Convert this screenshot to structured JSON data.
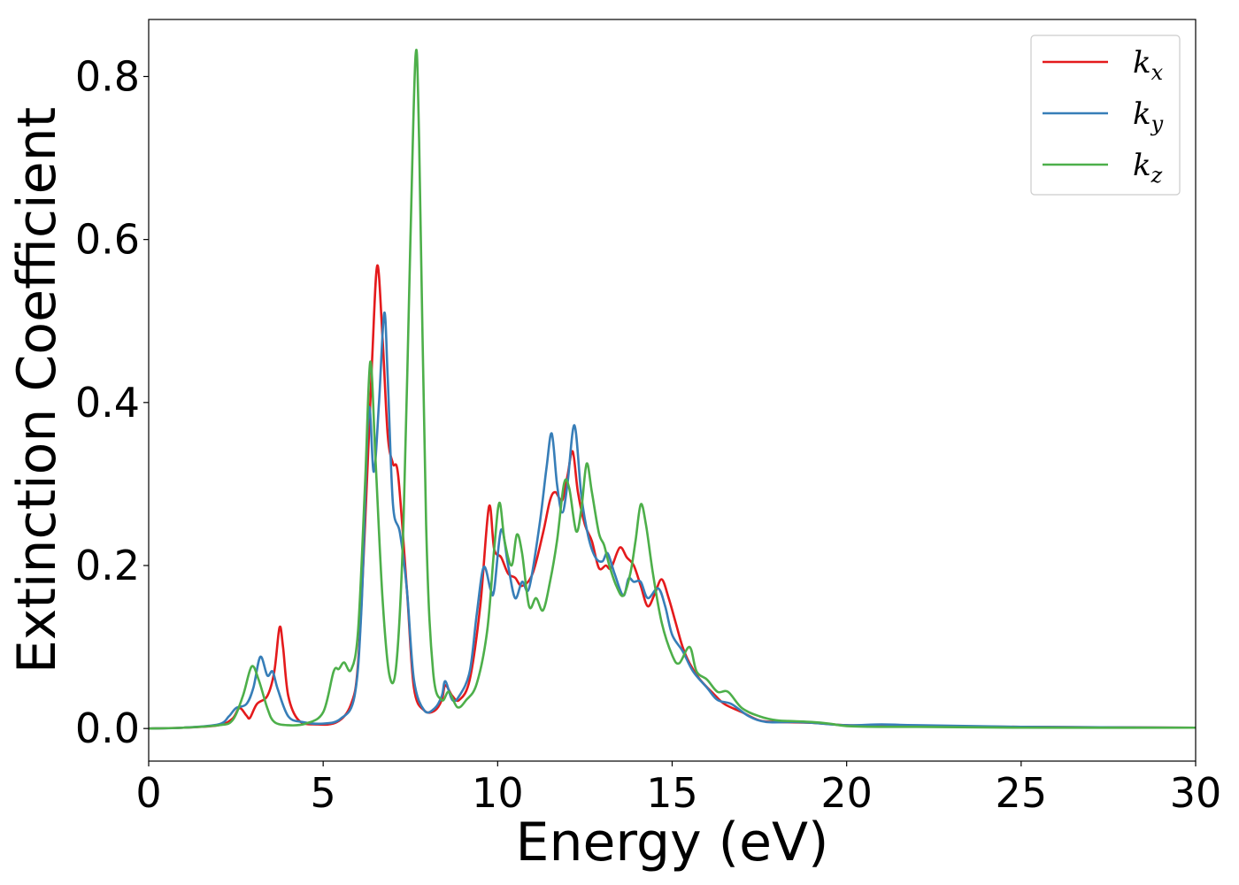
{
  "chart_data": {
    "type": "line",
    "xlabel": "Energy (eV)",
    "ylabel": "Extinction Coefficient",
    "xlim": [
      0,
      30
    ],
    "ylim": [
      -0.04,
      0.87
    ],
    "x_ticks": [
      0,
      5,
      10,
      15,
      20,
      25,
      30
    ],
    "x_tick_labels": [
      "0",
      "5",
      "10",
      "15",
      "20",
      "25",
      "30"
    ],
    "y_ticks": [
      0.0,
      0.2,
      0.4,
      0.6,
      0.8
    ],
    "y_tick_labels": [
      "0.0",
      "0.2",
      "0.4",
      "0.6",
      "0.8"
    ],
    "grid": false,
    "legend_position": "top-right",
    "series": [
      {
        "name": "k_x",
        "legend_base": "k",
        "legend_sub": "x",
        "color": "#e41a1c",
        "points": [
          [
            0,
            0
          ],
          [
            1,
            0.001
          ],
          [
            2,
            0.004
          ],
          [
            2.4,
            0.012
          ],
          [
            2.6,
            0.025
          ],
          [
            2.8,
            0.016
          ],
          [
            2.9,
            0.013
          ],
          [
            3.1,
            0.03
          ],
          [
            3.4,
            0.04
          ],
          [
            3.6,
            0.07
          ],
          [
            3.75,
            0.124
          ],
          [
            3.85,
            0.1
          ],
          [
            4.0,
            0.04
          ],
          [
            4.3,
            0.01
          ],
          [
            4.8,
            0.005
          ],
          [
            5.4,
            0.008
          ],
          [
            5.8,
            0.03
          ],
          [
            6.0,
            0.08
          ],
          [
            6.2,
            0.25
          ],
          [
            6.4,
            0.45
          ],
          [
            6.55,
            0.568
          ],
          [
            6.7,
            0.48
          ],
          [
            6.85,
            0.36
          ],
          [
            7.0,
            0.325
          ],
          [
            7.15,
            0.31
          ],
          [
            7.4,
            0.17
          ],
          [
            7.6,
            0.05
          ],
          [
            7.9,
            0.022
          ],
          [
            8.2,
            0.022
          ],
          [
            8.4,
            0.035
          ],
          [
            8.5,
            0.053
          ],
          [
            8.7,
            0.04
          ],
          [
            8.9,
            0.035
          ],
          [
            9.2,
            0.06
          ],
          [
            9.5,
            0.15
          ],
          [
            9.75,
            0.272
          ],
          [
            9.9,
            0.22
          ],
          [
            10.1,
            0.21
          ],
          [
            10.3,
            0.19
          ],
          [
            10.5,
            0.185
          ],
          [
            10.7,
            0.175
          ],
          [
            11.0,
            0.19
          ],
          [
            11.3,
            0.24
          ],
          [
            11.5,
            0.28
          ],
          [
            11.65,
            0.29
          ],
          [
            11.85,
            0.28
          ],
          [
            12.0,
            0.31
          ],
          [
            12.15,
            0.34
          ],
          [
            12.3,
            0.29
          ],
          [
            12.5,
            0.25
          ],
          [
            12.7,
            0.23
          ],
          [
            12.9,
            0.197
          ],
          [
            13.1,
            0.2
          ],
          [
            13.25,
            0.197
          ],
          [
            13.5,
            0.222
          ],
          [
            13.7,
            0.21
          ],
          [
            13.9,
            0.2
          ],
          [
            14.1,
            0.175
          ],
          [
            14.3,
            0.15
          ],
          [
            14.5,
            0.165
          ],
          [
            14.7,
            0.183
          ],
          [
            14.9,
            0.16
          ],
          [
            15.1,
            0.13
          ],
          [
            15.3,
            0.1
          ],
          [
            15.5,
            0.08
          ],
          [
            15.8,
            0.06
          ],
          [
            16.2,
            0.042
          ],
          [
            16.5,
            0.03
          ],
          [
            17.0,
            0.02
          ],
          [
            17.5,
            0.01
          ],
          [
            18.0,
            0.008
          ],
          [
            19.0,
            0.007
          ],
          [
            20.0,
            0.004
          ],
          [
            21.0,
            0.004
          ],
          [
            22.0,
            0.003
          ],
          [
            25.0,
            0.002
          ],
          [
            30.0,
            0.001
          ]
        ]
      },
      {
        "name": "k_y",
        "legend_base": "k",
        "legend_sub": "y",
        "color": "#377eb8",
        "points": [
          [
            0,
            0
          ],
          [
            1,
            0.001
          ],
          [
            2,
            0.005
          ],
          [
            2.3,
            0.015
          ],
          [
            2.5,
            0.025
          ],
          [
            2.8,
            0.03
          ],
          [
            3.0,
            0.05
          ],
          [
            3.2,
            0.088
          ],
          [
            3.4,
            0.065
          ],
          [
            3.55,
            0.07
          ],
          [
            3.7,
            0.048
          ],
          [
            4.0,
            0.015
          ],
          [
            4.4,
            0.008
          ],
          [
            5.0,
            0.006
          ],
          [
            5.5,
            0.012
          ],
          [
            5.9,
            0.04
          ],
          [
            6.1,
            0.15
          ],
          [
            6.3,
            0.39
          ],
          [
            6.45,
            0.315
          ],
          [
            6.6,
            0.4
          ],
          [
            6.75,
            0.51
          ],
          [
            6.85,
            0.43
          ],
          [
            7.0,
            0.275
          ],
          [
            7.2,
            0.24
          ],
          [
            7.4,
            0.17
          ],
          [
            7.6,
            0.06
          ],
          [
            7.9,
            0.022
          ],
          [
            8.2,
            0.025
          ],
          [
            8.4,
            0.04
          ],
          [
            8.5,
            0.058
          ],
          [
            8.7,
            0.035
          ],
          [
            8.9,
            0.04
          ],
          [
            9.2,
            0.07
          ],
          [
            9.4,
            0.14
          ],
          [
            9.6,
            0.198
          ],
          [
            9.8,
            0.17
          ],
          [
            9.9,
            0.17
          ],
          [
            10.1,
            0.244
          ],
          [
            10.3,
            0.2
          ],
          [
            10.5,
            0.16
          ],
          [
            10.7,
            0.18
          ],
          [
            10.9,
            0.172
          ],
          [
            11.2,
            0.25
          ],
          [
            11.4,
            0.32
          ],
          [
            11.55,
            0.362
          ],
          [
            11.7,
            0.3
          ],
          [
            11.85,
            0.265
          ],
          [
            12.0,
            0.3
          ],
          [
            12.2,
            0.372
          ],
          [
            12.4,
            0.285
          ],
          [
            12.6,
            0.235
          ],
          [
            12.8,
            0.21
          ],
          [
            13.0,
            0.205
          ],
          [
            13.15,
            0.215
          ],
          [
            13.35,
            0.19
          ],
          [
            13.6,
            0.163
          ],
          [
            13.75,
            0.184
          ],
          [
            13.9,
            0.18
          ],
          [
            14.1,
            0.18
          ],
          [
            14.3,
            0.16
          ],
          [
            14.6,
            0.172
          ],
          [
            14.8,
            0.15
          ],
          [
            15.0,
            0.115
          ],
          [
            15.3,
            0.095
          ],
          [
            15.6,
            0.07
          ],
          [
            16.0,
            0.05
          ],
          [
            16.3,
            0.035
          ],
          [
            16.7,
            0.03
          ],
          [
            17.2,
            0.015
          ],
          [
            17.7,
            0.008
          ],
          [
            18.5,
            0.008
          ],
          [
            19.0,
            0.007
          ],
          [
            20.0,
            0.004
          ],
          [
            21.0,
            0.005
          ],
          [
            22.0,
            0.004
          ],
          [
            25.0,
            0.002
          ],
          [
            30.0,
            0.001
          ]
        ]
      },
      {
        "name": "k_z",
        "legend_base": "k",
        "legend_sub": "z",
        "color": "#4daf4a",
        "points": [
          [
            0,
            0
          ],
          [
            1,
            0.001
          ],
          [
            2,
            0.004
          ],
          [
            2.4,
            0.01
          ],
          [
            2.7,
            0.04
          ],
          [
            2.95,
            0.076
          ],
          [
            3.15,
            0.06
          ],
          [
            3.4,
            0.025
          ],
          [
            3.6,
            0.008
          ],
          [
            4.0,
            0.004
          ],
          [
            4.5,
            0.006
          ],
          [
            5.0,
            0.02
          ],
          [
            5.3,
            0.07
          ],
          [
            5.45,
            0.073
          ],
          [
            5.6,
            0.081
          ],
          [
            5.8,
            0.072
          ],
          [
            6.0,
            0.12
          ],
          [
            6.2,
            0.3
          ],
          [
            6.35,
            0.45
          ],
          [
            6.5,
            0.33
          ],
          [
            6.7,
            0.16
          ],
          [
            6.9,
            0.065
          ],
          [
            7.1,
            0.08
          ],
          [
            7.3,
            0.25
          ],
          [
            7.5,
            0.6
          ],
          [
            7.65,
            0.827
          ],
          [
            7.75,
            0.72
          ],
          [
            7.95,
            0.25
          ],
          [
            8.15,
            0.07
          ],
          [
            8.4,
            0.035
          ],
          [
            8.6,
            0.045
          ],
          [
            8.85,
            0.026
          ],
          [
            9.1,
            0.035
          ],
          [
            9.4,
            0.055
          ],
          [
            9.7,
            0.12
          ],
          [
            9.9,
            0.22
          ],
          [
            10.05,
            0.277
          ],
          [
            10.2,
            0.23
          ],
          [
            10.4,
            0.2
          ],
          [
            10.55,
            0.238
          ],
          [
            10.7,
            0.215
          ],
          [
            10.9,
            0.15
          ],
          [
            11.1,
            0.16
          ],
          [
            11.3,
            0.145
          ],
          [
            11.5,
            0.18
          ],
          [
            11.7,
            0.23
          ],
          [
            11.9,
            0.3
          ],
          [
            12.05,
            0.295
          ],
          [
            12.25,
            0.242
          ],
          [
            12.4,
            0.27
          ],
          [
            12.55,
            0.325
          ],
          [
            12.7,
            0.29
          ],
          [
            12.9,
            0.24
          ],
          [
            13.05,
            0.225
          ],
          [
            13.2,
            0.2
          ],
          [
            13.4,
            0.175
          ],
          [
            13.6,
            0.163
          ],
          [
            13.8,
            0.19
          ],
          [
            13.95,
            0.23
          ],
          [
            14.1,
            0.275
          ],
          [
            14.25,
            0.25
          ],
          [
            14.45,
            0.19
          ],
          [
            14.7,
            0.13
          ],
          [
            15.0,
            0.09
          ],
          [
            15.2,
            0.08
          ],
          [
            15.5,
            0.1
          ],
          [
            15.7,
            0.07
          ],
          [
            16.0,
            0.06
          ],
          [
            16.3,
            0.045
          ],
          [
            16.6,
            0.045
          ],
          [
            17.0,
            0.025
          ],
          [
            17.5,
            0.015
          ],
          [
            18.0,
            0.01
          ],
          [
            18.5,
            0.009
          ],
          [
            19.0,
            0.008
          ],
          [
            19.5,
            0.006
          ],
          [
            20.0,
            0.003
          ],
          [
            21.0,
            0.002
          ],
          [
            22.0,
            0.002
          ],
          [
            25.0,
            0.001
          ],
          [
            30.0,
            0.001
          ]
        ]
      }
    ]
  }
}
